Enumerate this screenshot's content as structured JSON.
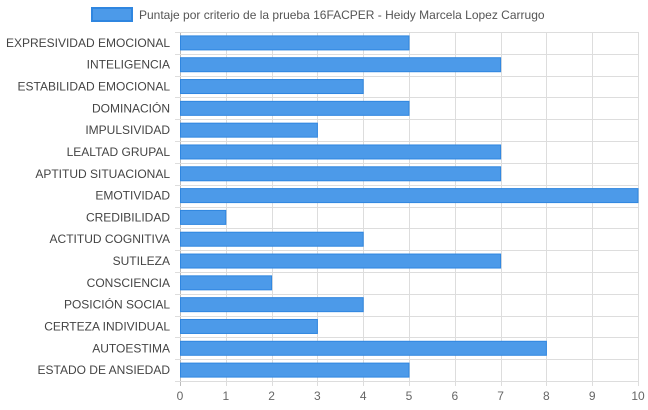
{
  "chart_data": {
    "type": "bar",
    "orientation": "horizontal",
    "categories": [
      "EXPRESIVIDAD EMOCIONAL",
      "INTELIGENCIA",
      "ESTABILIDAD EMOCIONAL",
      "DOMINACIÓN",
      "IMPULSIVIDAD",
      "LEALTAD GRUPAL",
      "APTITUD SITUACIONAL",
      "EMOTIVIDAD",
      "CREDIBILIDAD",
      "ACTITUD COGNITIVA",
      "SUTILEZA",
      "CONSCIENCIA",
      "POSICIÓN SOCIAL",
      "CERTEZA INDIVIDUAL",
      "AUTOESTIMA",
      "ESTADO DE ANSIEDAD"
    ],
    "series": [
      {
        "name": "Puntaje por criterio de la prueba 16FACPER - Heidy Marcela Lopez Carrugo",
        "values": [
          5,
          7,
          4,
          5,
          3,
          7,
          7,
          10,
          1,
          4,
          7,
          2,
          4,
          3,
          8,
          5
        ]
      }
    ],
    "xlim": [
      0,
      10
    ],
    "xticks": [
      0,
      1,
      2,
      3,
      4,
      5,
      6,
      7,
      8,
      9,
      10
    ],
    "grid": true,
    "legend_position": "top",
    "colors": {
      "bar_fill": "#4c9ae9",
      "bar_stroke": "#2f86e0",
      "grid": "#dddddd",
      "axis": "#bbbbbb"
    }
  }
}
